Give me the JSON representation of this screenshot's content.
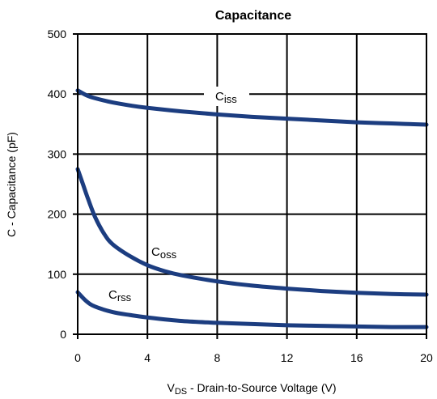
{
  "chart_data": {
    "type": "line",
    "title": "Capacitance",
    "xlabel": {
      "main": "V",
      "sub": "DS",
      "rest": " - Drain-to-Source Voltage (V)"
    },
    "ylabel": "C - Capacitance (pF)",
    "xlim": [
      0,
      20
    ],
    "ylim": [
      0,
      500
    ],
    "xticks": [
      "0",
      "4",
      "8",
      "12",
      "16",
      "20"
    ],
    "yticks": [
      "0",
      "100",
      "200",
      "300",
      "400",
      "500"
    ],
    "grid": true,
    "line_color": "#1c3d80",
    "series": [
      {
        "name": "Ciss",
        "label_main": "C",
        "label_sub": "iss",
        "x": [
          0,
          0.5,
          1,
          2,
          3,
          4,
          6,
          8,
          10,
          12,
          14,
          16,
          18,
          20
        ],
        "y": [
          406,
          398,
          393,
          386,
          381,
          377,
          371,
          366,
          362,
          359,
          356,
          353,
          351,
          349
        ]
      },
      {
        "name": "Coss",
        "label_main": "C",
        "label_sub": "oss",
        "x": [
          0,
          0.3,
          0.6,
          1,
          1.5,
          2,
          3,
          4,
          5,
          6,
          8,
          10,
          12,
          14,
          16,
          18,
          20
        ],
        "y": [
          275,
          250,
          225,
          195,
          168,
          150,
          130,
          115,
          105,
          98,
          88,
          81,
          76,
          72,
          69,
          67,
          66
        ]
      },
      {
        "name": "Crss",
        "label_main": "C",
        "label_sub": "rss",
        "x": [
          0,
          0.5,
          1,
          2,
          3,
          4,
          6,
          8,
          10,
          12,
          14,
          16,
          18,
          20
        ],
        "y": [
          70,
          55,
          46,
          37,
          32,
          28,
          22,
          19,
          17,
          15,
          14,
          13,
          12,
          12
        ]
      }
    ]
  }
}
